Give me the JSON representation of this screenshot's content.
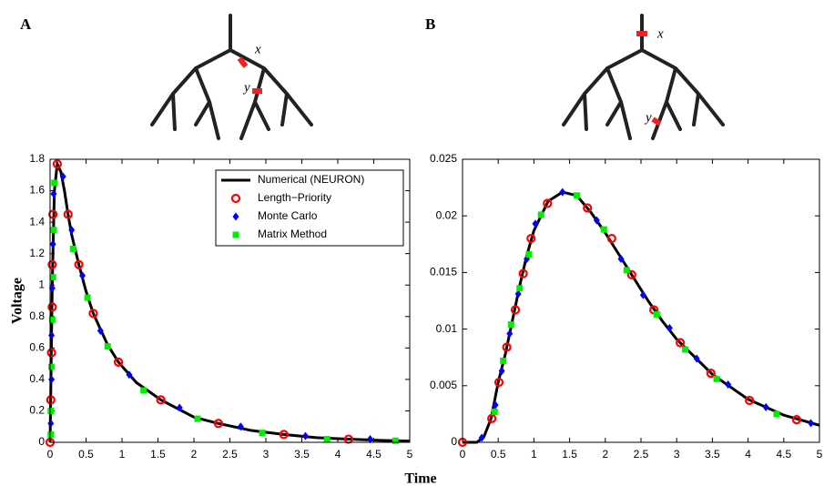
{
  "figure": {
    "xlabel": "Time"
  },
  "chart_data": [
    {
      "type": "line",
      "panel_label": "A",
      "diagram_labels": [
        "x",
        "y"
      ],
      "ylabel": "Voltage",
      "xlim": [
        0,
        5
      ],
      "xticks": [
        0,
        0.5,
        1,
        1.5,
        2,
        2.5,
        3,
        3.5,
        4,
        4.5,
        5
      ],
      "ylim": [
        0,
        1.8
      ],
      "yticks": [
        0,
        0.2,
        0.4,
        0.6,
        0.8,
        1,
        1.2,
        1.4,
        1.6,
        1.8
      ],
      "legend": "upper right",
      "series": [
        {
          "name": "Numerical (NEURON)",
          "color": "#000000",
          "marker": "line",
          "x": [
            0,
            0.03,
            0.06,
            0.1,
            0.15,
            0.2,
            0.25,
            0.3,
            0.4,
            0.5,
            0.6,
            0.8,
            0.95,
            1.2,
            1.54,
            2.0,
            2.34,
            2.8,
            3.25,
            3.7,
            4.15,
            4.6,
            5
          ],
          "values": [
            0,
            1.0,
            1.6,
            1.77,
            1.72,
            1.6,
            1.45,
            1.32,
            1.13,
            0.96,
            0.82,
            0.62,
            0.51,
            0.38,
            0.27,
            0.16,
            0.12,
            0.075,
            0.05,
            0.03,
            0.02,
            0.012,
            0.008
          ]
        },
        {
          "name": "Length−Priority",
          "color": "#ff0000",
          "marker": "circle",
          "x": [
            0,
            0.01,
            0.02,
            0.03,
            0.03,
            0.04,
            0.1,
            0.25,
            0.4,
            0.6,
            0.95,
            1.54,
            2.34,
            3.25,
            4.15
          ],
          "values": [
            0,
            0.27,
            0.57,
            0.86,
            1.13,
            1.45,
            1.77,
            1.45,
            1.13,
            0.82,
            0.51,
            0.27,
            0.12,
            0.05,
            0.02
          ]
        },
        {
          "name": "Monte Carlo",
          "color": "#0000ff",
          "marker": "diamond",
          "x": [
            0.01,
            0.02,
            0.02,
            0.03,
            0.04,
            0.05,
            0.18,
            0.3,
            0.45,
            0.7,
            1.1,
            1.8,
            2.65,
            3.55,
            4.45
          ],
          "values": [
            0.12,
            0.4,
            0.68,
            0.98,
            1.26,
            1.58,
            1.69,
            1.35,
            1.06,
            0.71,
            0.43,
            0.22,
            0.1,
            0.04,
            0.02
          ]
        },
        {
          "name": "Matrix Method",
          "color": "#00ee00",
          "marker": "square",
          "x": [
            0.01,
            0.01,
            0.02,
            0.03,
            0.04,
            0.05,
            0.06,
            0.32,
            0.52,
            0.8,
            1.3,
            2.05,
            2.95,
            3.85,
            4.8
          ],
          "values": [
            0.05,
            0.2,
            0.48,
            0.78,
            1.05,
            1.35,
            1.65,
            1.23,
            0.92,
            0.61,
            0.33,
            0.15,
            0.06,
            0.02,
            0.01
          ]
        }
      ]
    },
    {
      "type": "line",
      "panel_label": "B",
      "diagram_labels": [
        "x",
        "y"
      ],
      "xlim": [
        0,
        5
      ],
      "xticks": [
        0,
        0.5,
        1,
        1.5,
        2,
        2.5,
        3,
        3.5,
        4,
        4.5,
        5
      ],
      "ylim": [
        0,
        0.025
      ],
      "yticks": [
        0,
        0.005,
        0.01,
        0.015,
        0.02,
        0.025
      ],
      "legend": false,
      "series": [
        {
          "name": "Numerical (NEURON)",
          "color": "#000000",
          "marker": "line",
          "x": [
            0,
            0.2,
            0.3,
            0.4,
            0.5,
            0.6,
            0.7,
            0.8,
            0.9,
            1.0,
            1.2,
            1.4,
            1.6,
            1.8,
            2.0,
            2.2,
            2.4,
            2.6,
            2.8,
            3.0,
            3.5,
            4.0,
            4.5,
            5
          ],
          "values": [
            0,
            0,
            0.0005,
            0.0021,
            0.0053,
            0.0078,
            0.0108,
            0.0138,
            0.0165,
            0.0187,
            0.0213,
            0.0221,
            0.0218,
            0.0203,
            0.0185,
            0.0165,
            0.0145,
            0.0125,
            0.0107,
            0.0091,
            0.006,
            0.0038,
            0.0024,
            0.0015
          ]
        },
        {
          "name": "Length−Priority",
          "color": "#ff0000",
          "marker": "circle",
          "x": [
            0,
            0.41,
            0.51,
            0.62,
            0.74,
            0.85,
            0.96,
            1.19,
            1.75,
            2.09,
            2.37,
            2.68,
            3.05,
            3.48,
            4.02,
            4.68
          ],
          "values": [
            0,
            0.0021,
            0.0053,
            0.0084,
            0.0117,
            0.0149,
            0.018,
            0.0211,
            0.0207,
            0.018,
            0.0148,
            0.0117,
            0.0088,
            0.0061,
            0.0037,
            0.002
          ]
        },
        {
          "name": "Monte Carlo",
          "color": "#0000ff",
          "marker": "diamond",
          "x": [
            0.27,
            0.46,
            0.55,
            0.66,
            0.78,
            0.9,
            1.02,
            1.4,
            1.88,
            2.22,
            2.53,
            2.9,
            3.28,
            3.72,
            4.25,
            4.88
          ],
          "values": [
            0.0004,
            0.0033,
            0.0063,
            0.0096,
            0.0131,
            0.0162,
            0.0193,
            0.0221,
            0.0196,
            0.0162,
            0.013,
            0.0101,
            0.0074,
            0.0051,
            0.0031,
            0.0017
          ]
        },
        {
          "name": "Matrix Method",
          "color": "#00ee00",
          "marker": "square",
          "x": [
            0.45,
            0.57,
            0.68,
            0.8,
            0.93,
            1.1,
            1.6,
            1.98,
            2.3,
            2.72,
            3.12,
            3.56,
            4.4
          ],
          "values": [
            0.0027,
            0.0072,
            0.0104,
            0.0136,
            0.0166,
            0.0201,
            0.0218,
            0.0188,
            0.0152,
            0.0113,
            0.0082,
            0.0056,
            0.0025
          ]
        }
      ]
    }
  ]
}
